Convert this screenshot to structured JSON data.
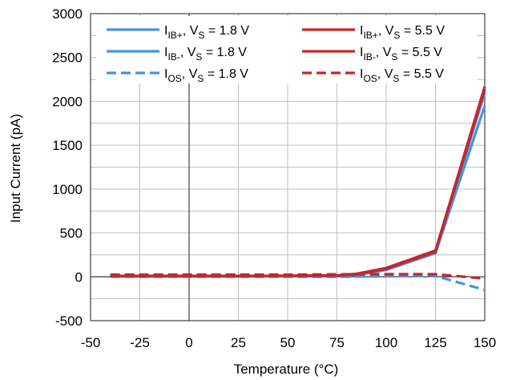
{
  "chart_data": {
    "type": "line",
    "xlabel": "Temperature (°C)",
    "ylabel": "Input Current (pA)",
    "xlim": [
      -50,
      150
    ],
    "ylim": [
      -500,
      3000
    ],
    "xticks": [
      -50,
      -25,
      0,
      25,
      50,
      75,
      100,
      125,
      150
    ],
    "yticks": [
      -500,
      0,
      500,
      1000,
      1500,
      2000,
      2500,
      3000
    ],
    "xtick_labels": [
      "-50",
      "-25",
      "0",
      "25",
      "50",
      "75",
      "100",
      "125",
      "150"
    ],
    "ytick_labels": [
      "-500",
      "0",
      "500",
      "1000",
      "1500",
      "2000",
      "2500",
      "3000"
    ],
    "grid": true,
    "legend_placement": "top",
    "series": [
      {
        "name": "I_IB+, V_S = 1.8 V",
        "label_main": "I",
        "label_sub": "IB+",
        "label_rest": ", V",
        "label_sub2": "S",
        "label_tail": " = 1.8 V",
        "color": "#4a90e2",
        "dash": "solid",
        "x": [
          -40,
          -25,
          0,
          25,
          50,
          75,
          85,
          100,
          125,
          150
        ],
        "y": [
          5,
          5,
          5,
          5,
          8,
          10,
          20,
          80,
          270,
          2100
        ]
      },
      {
        "name": "I_IB-, V_S = 1.8 V",
        "label_main": "I",
        "label_sub": "IB-",
        "label_rest": ", V",
        "label_sub2": "S",
        "label_tail": " = 1.8 V",
        "color": "#4a90e2",
        "dash": "solid",
        "x": [
          -40,
          -25,
          0,
          25,
          50,
          75,
          85,
          100,
          125,
          150
        ],
        "y": [
          5,
          5,
          5,
          5,
          8,
          10,
          20,
          80,
          270,
          1950
        ]
      },
      {
        "name": "I_OS, V_S = 1.8 V",
        "label_main": "I",
        "label_sub": "OS",
        "label_rest": ", V",
        "label_sub2": "S",
        "label_tail": " = 1.8 V",
        "color": "#4a90e2",
        "dash": "dashed",
        "x": [
          -40,
          -25,
          0,
          25,
          50,
          75,
          100,
          125,
          150
        ],
        "y": [
          0,
          0,
          0,
          0,
          0,
          0,
          5,
          10,
          -150
        ]
      },
      {
        "name": "I_IB+, V_S = 5.5 V",
        "label_main": "I",
        "label_sub": "IB+",
        "label_rest": ", V",
        "label_sub2": "S",
        "label_tail": " = 5.5 V",
        "color": "#c0282d",
        "dash": "solid",
        "x": [
          -40,
          -25,
          0,
          25,
          50,
          75,
          85,
          100,
          125,
          150
        ],
        "y": [
          10,
          10,
          10,
          10,
          12,
          15,
          35,
          100,
          300,
          2170
        ]
      },
      {
        "name": "I_IB-, V_S = 5.5 V",
        "label_main": "I",
        "label_sub": "IB-",
        "label_rest": ", V",
        "label_sub2": "S",
        "label_tail": " = 5.5 V",
        "color": "#c0282d",
        "dash": "solid",
        "x": [
          -40,
          -25,
          0,
          25,
          50,
          75,
          85,
          100,
          125,
          150
        ],
        "y": [
          10,
          10,
          10,
          10,
          12,
          15,
          30,
          90,
          285,
          2140
        ]
      },
      {
        "name": "I_OS, V_S = 5.5 V",
        "label_main": "I",
        "label_sub": "OS",
        "label_rest": ", V",
        "label_sub2": "S",
        "label_tail": " = 5.5 V",
        "color": "#c0282d",
        "dash": "dashed",
        "x": [
          -40,
          -25,
          0,
          25,
          50,
          75,
          100,
          125,
          150
        ],
        "y": [
          25,
          25,
          25,
          25,
          25,
          28,
          30,
          30,
          -20
        ]
      }
    ]
  }
}
